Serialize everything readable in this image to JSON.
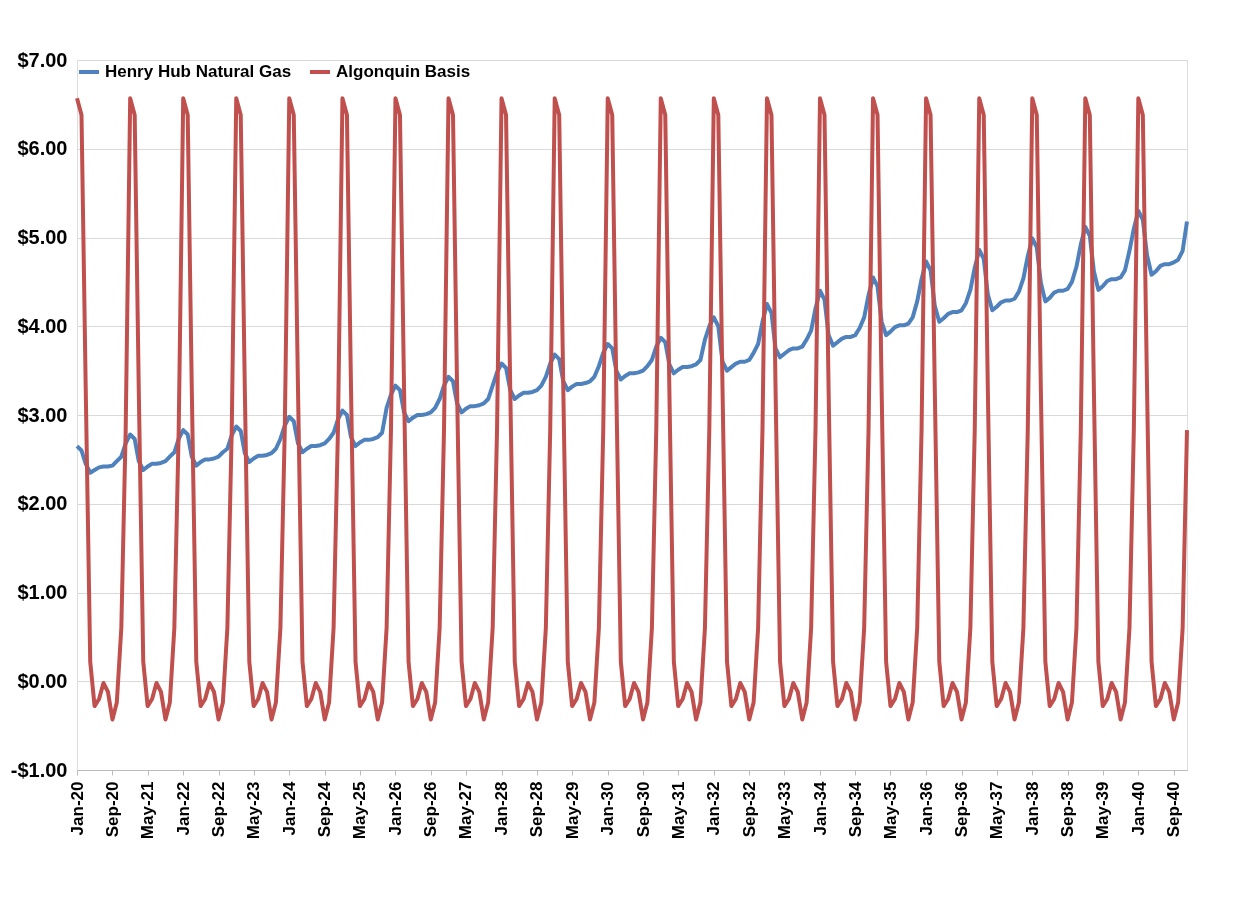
{
  "chart_data": {
    "type": "line",
    "x": [
      "2020-01",
      "2020-02",
      "2020-03",
      "2020-04",
      "2020-05",
      "2020-06",
      "2020-07",
      "2020-08",
      "2020-09",
      "2020-10",
      "2020-11",
      "2020-12",
      "2021-01",
      "2021-02",
      "2021-03",
      "2021-04",
      "2021-05",
      "2021-06",
      "2021-07",
      "2021-08",
      "2021-09",
      "2021-10",
      "2021-11",
      "2021-12",
      "2022-01",
      "2022-02",
      "2022-03",
      "2022-04",
      "2022-05",
      "2022-06",
      "2022-07",
      "2022-08",
      "2022-09",
      "2022-10",
      "2022-11",
      "2022-12",
      "2023-01",
      "2023-02",
      "2023-03",
      "2023-04",
      "2023-05",
      "2023-06",
      "2023-07",
      "2023-08",
      "2023-09",
      "2023-10",
      "2023-11",
      "2023-12",
      "2024-01",
      "2024-02",
      "2024-03",
      "2024-04",
      "2024-05",
      "2024-06",
      "2024-07",
      "2024-08",
      "2024-09",
      "2024-10",
      "2024-11",
      "2024-12",
      "2025-01",
      "2025-02",
      "2025-03",
      "2025-04",
      "2025-05",
      "2025-06",
      "2025-07",
      "2025-08",
      "2025-09",
      "2025-10",
      "2025-11",
      "2025-12",
      "2026-01",
      "2026-02",
      "2026-03",
      "2026-04",
      "2026-05",
      "2026-06",
      "2026-07",
      "2026-08",
      "2026-09",
      "2026-10",
      "2026-11",
      "2026-12",
      "2027-01",
      "2027-02",
      "2027-03",
      "2027-04",
      "2027-05",
      "2027-06",
      "2027-07",
      "2027-08",
      "2027-09",
      "2027-10",
      "2027-11",
      "2027-12",
      "2028-01",
      "2028-02",
      "2028-03",
      "2028-04",
      "2028-05",
      "2028-06",
      "2028-07",
      "2028-08",
      "2028-09",
      "2028-10",
      "2028-11",
      "2028-12",
      "2029-01",
      "2029-02",
      "2029-03",
      "2029-04",
      "2029-05",
      "2029-06",
      "2029-07",
      "2029-08",
      "2029-09",
      "2029-10",
      "2029-11",
      "2029-12",
      "2030-01",
      "2030-02",
      "2030-03",
      "2030-04",
      "2030-05",
      "2030-06",
      "2030-07",
      "2030-08",
      "2030-09",
      "2030-10",
      "2030-11",
      "2030-12",
      "2031-01",
      "2031-02",
      "2031-03",
      "2031-04",
      "2031-05",
      "2031-06",
      "2031-07",
      "2031-08",
      "2031-09",
      "2031-10",
      "2031-11",
      "2031-12",
      "2032-01",
      "2032-02",
      "2032-03",
      "2032-04",
      "2032-05",
      "2032-06",
      "2032-07",
      "2032-08",
      "2032-09",
      "2032-10",
      "2032-11",
      "2032-12",
      "2033-01",
      "2033-02",
      "2033-03",
      "2033-04",
      "2033-05",
      "2033-06",
      "2033-07",
      "2033-08",
      "2033-09",
      "2033-10",
      "2033-11",
      "2033-12",
      "2034-01",
      "2034-02",
      "2034-03",
      "2034-04",
      "2034-05",
      "2034-06",
      "2034-07",
      "2034-08",
      "2034-09",
      "2034-10",
      "2034-11",
      "2034-12",
      "2035-01",
      "2035-02",
      "2035-03",
      "2035-04",
      "2035-05",
      "2035-06",
      "2035-07",
      "2035-08",
      "2035-09",
      "2035-10",
      "2035-11",
      "2035-12",
      "2036-01",
      "2036-02",
      "2036-03",
      "2036-04",
      "2036-05",
      "2036-06",
      "2036-07",
      "2036-08",
      "2036-09",
      "2036-10",
      "2036-11",
      "2036-12",
      "2037-01",
      "2037-02",
      "2037-03",
      "2037-04",
      "2037-05",
      "2037-06",
      "2037-07",
      "2037-08",
      "2037-09",
      "2037-10",
      "2037-11",
      "2037-12",
      "2038-01",
      "2038-02",
      "2038-03",
      "2038-04",
      "2038-05",
      "2038-06",
      "2038-07",
      "2038-08",
      "2038-09",
      "2038-10",
      "2038-11",
      "2038-12",
      "2039-01",
      "2039-02",
      "2039-03",
      "2039-04",
      "2039-05",
      "2039-06",
      "2039-07",
      "2039-08",
      "2039-09",
      "2039-10",
      "2039-11",
      "2039-12",
      "2040-01",
      "2040-02",
      "2040-03",
      "2040-04",
      "2040-05",
      "2040-06",
      "2040-07",
      "2040-08",
      "2040-09",
      "2040-10",
      "2040-11",
      "2040-12"
    ],
    "series": [
      {
        "name": "Henry Hub Natural Gas",
        "color": "#4f81bd",
        "values": [
          2.65,
          2.6,
          2.45,
          2.35,
          2.38,
          2.41,
          2.42,
          2.42,
          2.43,
          2.48,
          2.53,
          2.68,
          2.78,
          2.73,
          2.48,
          2.38,
          2.42,
          2.45,
          2.45,
          2.46,
          2.48,
          2.53,
          2.58,
          2.73,
          2.83,
          2.78,
          2.53,
          2.43,
          2.47,
          2.5,
          2.5,
          2.51,
          2.53,
          2.58,
          2.62,
          2.77,
          2.87,
          2.82,
          2.57,
          2.47,
          2.51,
          2.54,
          2.54,
          2.55,
          2.57,
          2.62,
          2.73,
          2.88,
          2.98,
          2.93,
          2.68,
          2.58,
          2.62,
          2.65,
          2.65,
          2.66,
          2.68,
          2.73,
          2.8,
          2.95,
          3.05,
          3.0,
          2.75,
          2.65,
          2.69,
          2.72,
          2.72,
          2.73,
          2.75,
          2.8,
          3.08,
          3.23,
          3.33,
          3.28,
          3.03,
          2.93,
          2.97,
          3.0,
          3.0,
          3.01,
          3.03,
          3.08,
          3.18,
          3.33,
          3.43,
          3.38,
          3.13,
          3.03,
          3.07,
          3.1,
          3.1,
          3.11,
          3.13,
          3.18,
          3.33,
          3.48,
          3.58,
          3.53,
          3.28,
          3.18,
          3.22,
          3.25,
          3.25,
          3.26,
          3.28,
          3.33,
          3.43,
          3.58,
          3.68,
          3.63,
          3.38,
          3.28,
          3.32,
          3.35,
          3.35,
          3.36,
          3.38,
          3.43,
          3.55,
          3.7,
          3.8,
          3.75,
          3.5,
          3.4,
          3.44,
          3.47,
          3.47,
          3.48,
          3.5,
          3.55,
          3.62,
          3.77,
          3.87,
          3.82,
          3.57,
          3.47,
          3.51,
          3.54,
          3.54,
          3.55,
          3.57,
          3.62,
          3.85,
          4.0,
          4.1,
          4.0,
          3.6,
          3.5,
          3.54,
          3.58,
          3.6,
          3.6,
          3.62,
          3.7,
          3.8,
          4.05,
          4.25,
          4.15,
          3.75,
          3.65,
          3.69,
          3.73,
          3.75,
          3.75,
          3.77,
          3.85,
          3.95,
          4.2,
          4.4,
          4.3,
          3.9,
          3.78,
          3.82,
          3.86,
          3.88,
          3.88,
          3.9,
          3.98,
          4.1,
          4.35,
          4.55,
          4.45,
          4.05,
          3.9,
          3.94,
          3.99,
          4.01,
          4.01,
          4.03,
          4.1,
          4.28,
          4.53,
          4.73,
          4.63,
          4.23,
          4.05,
          4.09,
          4.14,
          4.16,
          4.16,
          4.18,
          4.26,
          4.41,
          4.66,
          4.86,
          4.76,
          4.36,
          4.18,
          4.22,
          4.27,
          4.29,
          4.29,
          4.31,
          4.39,
          4.54,
          4.79,
          4.99,
          4.89,
          4.49,
          4.28,
          4.32,
          4.38,
          4.4,
          4.4,
          4.42,
          4.5,
          4.67,
          4.92,
          5.12,
          5.02,
          4.62,
          4.41,
          4.45,
          4.51,
          4.53,
          4.53,
          4.55,
          4.63,
          4.85,
          5.1,
          5.3,
          5.2,
          4.8,
          4.58,
          4.62,
          4.68,
          4.7,
          4.7,
          4.72,
          4.75,
          4.85,
          5.18
        ]
      },
      {
        "name": "Algonquin Basis",
        "color": "#c0504d",
        "values": [
          6.57,
          6.38,
          3.3,
          0.22,
          -0.28,
          -0.2,
          -0.02,
          -0.12,
          -0.43,
          -0.24,
          0.6,
          2.83,
          6.57,
          6.38,
          3.3,
          0.22,
          -0.28,
          -0.2,
          -0.02,
          -0.12,
          -0.43,
          -0.24,
          0.6,
          2.83,
          6.57,
          6.38,
          3.3,
          0.22,
          -0.28,
          -0.2,
          -0.02,
          -0.12,
          -0.43,
          -0.24,
          0.6,
          2.83,
          6.57,
          6.38,
          3.3,
          0.22,
          -0.28,
          -0.2,
          -0.02,
          -0.12,
          -0.43,
          -0.24,
          0.6,
          2.83,
          6.57,
          6.38,
          3.3,
          0.22,
          -0.28,
          -0.2,
          -0.02,
          -0.12,
          -0.43,
          -0.24,
          0.6,
          2.83,
          6.57,
          6.38,
          3.3,
          0.22,
          -0.28,
          -0.2,
          -0.02,
          -0.12,
          -0.43,
          -0.24,
          0.6,
          2.83,
          6.57,
          6.38,
          3.3,
          0.22,
          -0.28,
          -0.2,
          -0.02,
          -0.12,
          -0.43,
          -0.24,
          0.6,
          2.83,
          6.57,
          6.38,
          3.3,
          0.22,
          -0.28,
          -0.2,
          -0.02,
          -0.12,
          -0.43,
          -0.24,
          0.6,
          2.83,
          6.57,
          6.38,
          3.3,
          0.22,
          -0.28,
          -0.2,
          -0.02,
          -0.12,
          -0.43,
          -0.24,
          0.6,
          2.83,
          6.57,
          6.38,
          3.3,
          0.22,
          -0.28,
          -0.2,
          -0.02,
          -0.12,
          -0.43,
          -0.24,
          0.6,
          2.83,
          6.57,
          6.38,
          3.3,
          0.22,
          -0.28,
          -0.2,
          -0.02,
          -0.12,
          -0.43,
          -0.24,
          0.6,
          2.83,
          6.57,
          6.38,
          3.3,
          0.22,
          -0.28,
          -0.2,
          -0.02,
          -0.12,
          -0.43,
          -0.24,
          0.6,
          2.83,
          6.57,
          6.38,
          3.3,
          0.22,
          -0.28,
          -0.2,
          -0.02,
          -0.12,
          -0.43,
          -0.24,
          0.6,
          2.83,
          6.57,
          6.38,
          3.3,
          0.22,
          -0.28,
          -0.2,
          -0.02,
          -0.12,
          -0.43,
          -0.24,
          0.6,
          2.83,
          6.57,
          6.38,
          3.3,
          0.22,
          -0.28,
          -0.2,
          -0.02,
          -0.12,
          -0.43,
          -0.24,
          0.6,
          2.83,
          6.57,
          6.38,
          3.3,
          0.22,
          -0.28,
          -0.2,
          -0.02,
          -0.12,
          -0.43,
          -0.24,
          0.6,
          2.83,
          6.57,
          6.38,
          3.3,
          0.22,
          -0.28,
          -0.2,
          -0.02,
          -0.12,
          -0.43,
          -0.24,
          0.6,
          2.83,
          6.57,
          6.38,
          3.3,
          0.22,
          -0.28,
          -0.2,
          -0.02,
          -0.12,
          -0.43,
          -0.24,
          0.6,
          2.83,
          6.57,
          6.38,
          3.3,
          0.22,
          -0.28,
          -0.2,
          -0.02,
          -0.12,
          -0.43,
          -0.24,
          0.6,
          2.83,
          6.57,
          6.38,
          3.3,
          0.22,
          -0.28,
          -0.2,
          -0.02,
          -0.12,
          -0.43,
          -0.24,
          0.6,
          2.83,
          6.57,
          6.38,
          3.3,
          0.22,
          -0.28,
          -0.2,
          -0.02,
          -0.12,
          -0.43,
          -0.24,
          0.6,
          2.83
        ]
      }
    ],
    "xlim": [
      "2020-01",
      "2040-12"
    ],
    "xticks": [
      {
        "value": "2020-01",
        "label": "Jan-20"
      },
      {
        "value": "2020-09",
        "label": "Sep-20"
      },
      {
        "value": "2021-05",
        "label": "May-21"
      },
      {
        "value": "2022-01",
        "label": "Jan-22"
      },
      {
        "value": "2022-09",
        "label": "Sep-22"
      },
      {
        "value": "2023-05",
        "label": "May-23"
      },
      {
        "value": "2024-01",
        "label": "Jan-24"
      },
      {
        "value": "2024-09",
        "label": "Sep-24"
      },
      {
        "value": "2025-05",
        "label": "May-25"
      },
      {
        "value": "2026-01",
        "label": "Jan-26"
      },
      {
        "value": "2026-09",
        "label": "Sep-26"
      },
      {
        "value": "2027-05",
        "label": "May-27"
      },
      {
        "value": "2028-01",
        "label": "Jan-28"
      },
      {
        "value": "2028-09",
        "label": "Sep-28"
      },
      {
        "value": "2029-05",
        "label": "May-29"
      },
      {
        "value": "2030-01",
        "label": "Jan-30"
      },
      {
        "value": "2030-09",
        "label": "Sep-30"
      },
      {
        "value": "2031-05",
        "label": "May-31"
      },
      {
        "value": "2032-01",
        "label": "Jan-32"
      },
      {
        "value": "2032-09",
        "label": "Sep-32"
      },
      {
        "value": "2033-05",
        "label": "May-33"
      },
      {
        "value": "2034-01",
        "label": "Jan-34"
      },
      {
        "value": "2034-09",
        "label": "Sep-34"
      },
      {
        "value": "2035-05",
        "label": "May-35"
      },
      {
        "value": "2036-01",
        "label": "Jan-36"
      },
      {
        "value": "2036-09",
        "label": "Sep-36"
      },
      {
        "value": "2037-05",
        "label": "May-37"
      },
      {
        "value": "2038-01",
        "label": "Jan-38"
      },
      {
        "value": "2038-09",
        "label": "Sep-38"
      },
      {
        "value": "2039-05",
        "label": "May-39"
      },
      {
        "value": "2040-01",
        "label": "Jan-40"
      },
      {
        "value": "2040-09",
        "label": "Sep-40"
      }
    ],
    "ylim": [
      -1,
      7
    ],
    "yticks": [
      {
        "value": -1,
        "label": "-$1.00"
      },
      {
        "value": 0,
        "label": "$0.00"
      },
      {
        "value": 1,
        "label": "$1.00"
      },
      {
        "value": 2,
        "label": "$2.00"
      },
      {
        "value": 3,
        "label": "$3.00"
      },
      {
        "value": 4,
        "label": "$4.00"
      },
      {
        "value": 5,
        "label": "$5.00"
      },
      {
        "value": 6,
        "label": "$6.00"
      },
      {
        "value": 7,
        "label": "$7.00"
      }
    ],
    "grid": "y",
    "legend": "top",
    "line_style": "solid",
    "marker": "none"
  }
}
